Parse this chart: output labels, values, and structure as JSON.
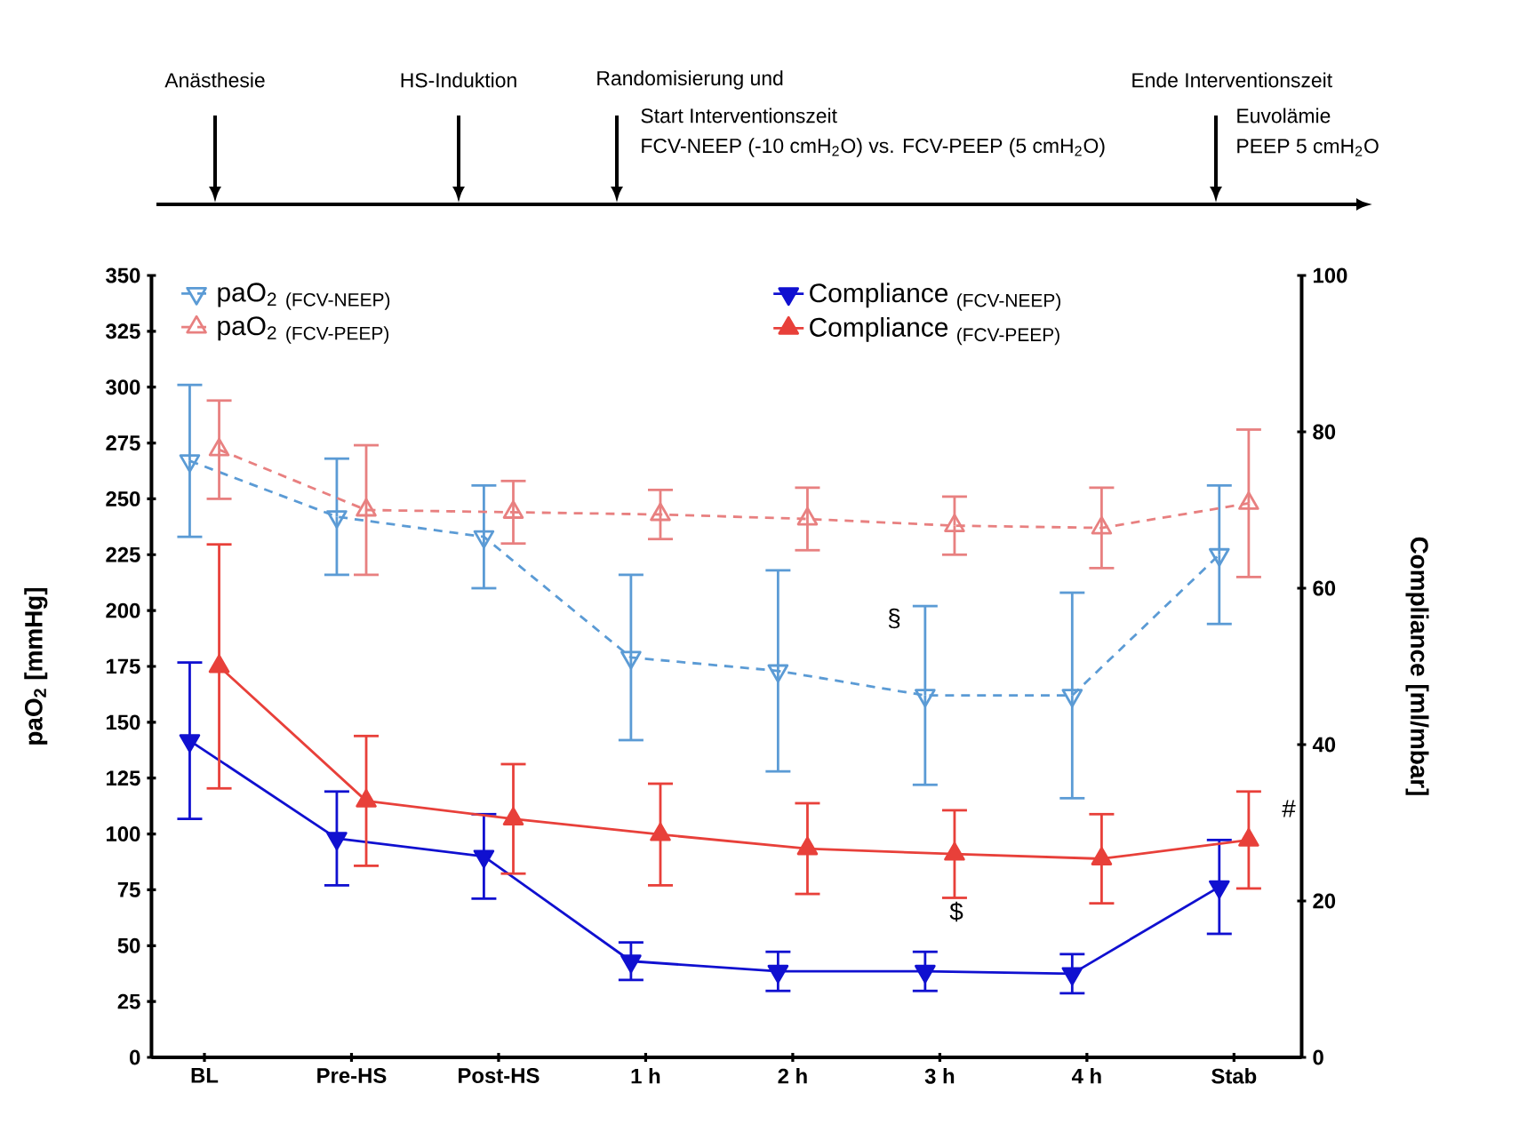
{
  "chart_data": {
    "type": "line",
    "categories": [
      "BL",
      "Pre-HS",
      "Post-HS",
      "1 h",
      "2 h",
      "3 h",
      "4 h",
      "Stab"
    ],
    "ylabel": "paO$_{2}$ [mmHg]",
    "y2label": "Compliance [ml/mbar]",
    "ylim": [
      0,
      350
    ],
    "yticks": [
      0,
      25,
      50,
      75,
      100,
      125,
      150,
      175,
      200,
      225,
      250,
      275,
      300,
      325,
      350
    ],
    "y2lim": [
      0,
      100
    ],
    "y2ticks": [
      0,
      20,
      40,
      60,
      80,
      100
    ],
    "grid": false,
    "legend": "top",
    "series": [
      {
        "name": "paO$_{2}$ $_{(FCV-NEEP)}$",
        "color": "#5b9bd5",
        "marker": "triangle down",
        "line_style": "dashed",
        "values": [
          267,
          242,
          233,
          179,
          173,
          162,
          162,
          225
        ],
        "errors": [
          34,
          26,
          23,
          37,
          45,
          40,
          46,
          31
        ]
      },
      {
        "name": "paO$_{2}$ $_{(FCV-PEEP)}$",
        "color": "#e88080",
        "marker": "triangle",
        "line_style": "dashed",
        "values": [
          272,
          245,
          244,
          243,
          241,
          238,
          237,
          248
        ],
        "errors": [
          22,
          29,
          14,
          11,
          14,
          13,
          18,
          33
        ]
      },
      {
        "name": "Compliance $_{(FCV-NEEP)}$",
        "color": "#1010d0",
        "marker": "triangle down",
        "line_style": "solid",
        "axis": "y2",
        "values": [
          40.5,
          28,
          25.7,
          12.3,
          11,
          11,
          10.7,
          21.8
        ],
        "errors": [
          10,
          6,
          5.4,
          2.4,
          2.5,
          2.5,
          2.5,
          6
        ]
      },
      {
        "name": "Compliance $_{(FCV-PEEP)}$",
        "color": "#e8403a",
        "marker": "triangle",
        "line_style": "solid",
        "axis": "y2",
        "values": [
          50,
          32.8,
          30.5,
          28.5,
          26.7,
          26,
          25.4,
          27.8
        ],
        "errors": [
          15.6,
          8.3,
          7,
          6.5,
          5.8,
          5.6,
          5.7,
          6.2
        ]
      }
    ],
    "annotations": [
      "Anästhesie",
      "HS-Induktion",
      "Randomisierung und",
      "Start Interventionszeit",
      "FCV-NEEP  (-10 cmH$_{2}$O) vs. FCV-PEEP  (5 cmH$_{2}$O)",
      "Ende  Interventionszeit",
      "Euvolämie",
      "PEEP 5 cmH$_{2}$O",
      "§",
      "$",
      "#"
    ]
  }
}
